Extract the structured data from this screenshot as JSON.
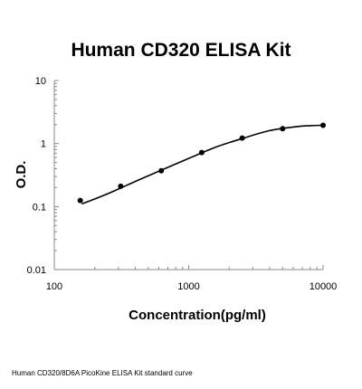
{
  "chart_data": {
    "type": "scatter",
    "title": "Human CD320 ELISA Kit",
    "xlabel": "Concentration(pg/ml)",
    "ylabel": "O.D.",
    "xscale": "log",
    "yscale": "log",
    "xlim": [
      100,
      10000
    ],
    "ylim": [
      0.01,
      10
    ],
    "xticks": [
      "100",
      "1000",
      "10000"
    ],
    "yticks": [
      "10",
      "1",
      "0.1",
      "0.01"
    ],
    "grid": false,
    "legend": "none",
    "series": [
      {
        "points": [
          {
            "x": 156,
            "y": 0.125
          },
          {
            "x": 312,
            "y": 0.21
          },
          {
            "x": 625,
            "y": 0.37
          },
          {
            "x": 1250,
            "y": 0.72
          },
          {
            "x": 2500,
            "y": 1.22
          },
          {
            "x": 5000,
            "y": 1.72
          },
          {
            "x": 10000,
            "y": 1.95
          }
        ],
        "fit_curve": [
          {
            "x": 160,
            "y": 0.11
          },
          {
            "x": 250,
            "y": 0.16
          },
          {
            "x": 400,
            "y": 0.25
          },
          {
            "x": 630,
            "y": 0.38
          },
          {
            "x": 1000,
            "y": 0.58
          },
          {
            "x": 1600,
            "y": 0.88
          },
          {
            "x": 2500,
            "y": 1.2
          },
          {
            "x": 4000,
            "y": 1.6
          },
          {
            "x": 6300,
            "y": 1.85
          },
          {
            "x": 8000,
            "y": 1.92
          },
          {
            "x": 10000,
            "y": 1.95
          }
        ]
      }
    ]
  },
  "footer": {
    "caption": "Human CD320/8D6A PicoKine ELISA Kit standard curve"
  },
  "colors": {
    "marker": "#000000",
    "line": "#000000",
    "axis": "#888888"
  }
}
